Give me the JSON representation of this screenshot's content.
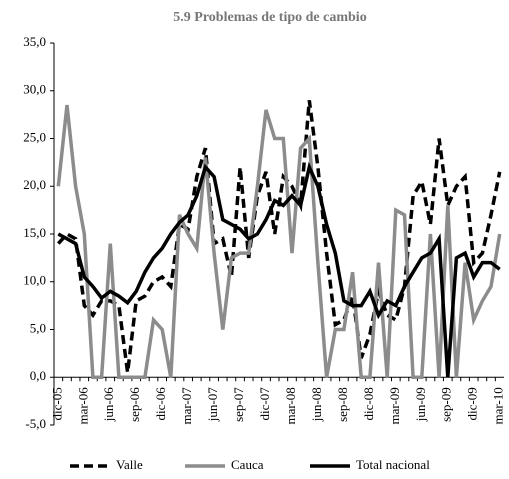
{
  "chart_data": {
    "type": "line",
    "title": "5.9 Problemas de tipo de cambio",
    "categories": [
      "dic-05",
      null,
      null,
      "mar-06",
      null,
      null,
      "jun-06",
      null,
      null,
      "sep-06",
      null,
      null,
      "dic-06",
      null,
      null,
      "mar-07",
      null,
      null,
      "jun-07",
      null,
      null,
      "sep-07",
      null,
      null,
      "dic-07",
      null,
      null,
      "mar-08",
      null,
      null,
      "jun-08",
      null,
      null,
      "sep-08",
      null,
      null,
      "dic-08",
      null,
      null,
      "mar-09",
      null,
      null,
      "jun-09",
      null,
      null,
      "sep-09",
      null,
      null,
      "dic-09",
      null,
      null,
      "mar-10"
    ],
    "series": [
      {
        "name": "Valle",
        "color": "#000000",
        "dash": true,
        "values": [
          14,
          15,
          14.5,
          7.5,
          6.5,
          8,
          8,
          7.5,
          0.5,
          8,
          8.5,
          10,
          10.5,
          9.5,
          16,
          15.5,
          21,
          24,
          14,
          14.5,
          10.5,
          22,
          12.5,
          19,
          21.5,
          15,
          21,
          20,
          18,
          29,
          22,
          13,
          5.5,
          6,
          8.5,
          2,
          4.5,
          9,
          6.5,
          6,
          9.5,
          19,
          20.5,
          16,
          25,
          18,
          20,
          21,
          12,
          13,
          17,
          21.5
        ]
      },
      {
        "name": "Cauca",
        "color": "#8c8c8c",
        "dash": false,
        "values": [
          20,
          28.5,
          20,
          15,
          0,
          0,
          14,
          0,
          0,
          0,
          0,
          6,
          5,
          0,
          17,
          15,
          13.5,
          23,
          13,
          5,
          12.5,
          13,
          13,
          20,
          28,
          25,
          25,
          13,
          24,
          25,
          12,
          0,
          5,
          5,
          11,
          0,
          0,
          12,
          0,
          17.5,
          17,
          0,
          0,
          15,
          0,
          18,
          0,
          12,
          6,
          8,
          9.5,
          15
        ]
      },
      {
        "name": "Total nacional",
        "color": "#000000",
        "dash": false,
        "values": [
          15,
          14.5,
          14,
          10.5,
          9.5,
          8.3,
          9,
          8.5,
          7.8,
          9,
          11,
          12.5,
          13.5,
          15,
          16.2,
          17,
          19,
          22,
          21,
          16.5,
          16,
          15.5,
          14.5,
          15,
          16.5,
          18.5,
          18,
          19,
          18,
          22,
          20,
          16,
          13,
          8,
          7.5,
          7.5,
          9,
          6.5,
          8,
          7.5,
          9.5,
          11,
          12.5,
          13,
          14.5,
          0,
          12.5,
          13,
          10.5,
          12,
          12,
          11.3
        ]
      }
    ],
    "ylim": [
      -5,
      35
    ],
    "yticks": [
      {
        "value": -5,
        "label": "-5,0"
      },
      {
        "value": 0,
        "label": "0,0"
      },
      {
        "value": 5,
        "label": "5,0"
      },
      {
        "value": 10,
        "label": "10,0"
      },
      {
        "value": 15,
        "label": "15,0"
      },
      {
        "value": 20,
        "label": "20,0"
      },
      {
        "value": 25,
        "label": "25,0"
      },
      {
        "value": 30,
        "label": "30,0"
      },
      {
        "value": 35,
        "label": "35,0"
      }
    ],
    "grid": false,
    "legend": "bottom"
  }
}
